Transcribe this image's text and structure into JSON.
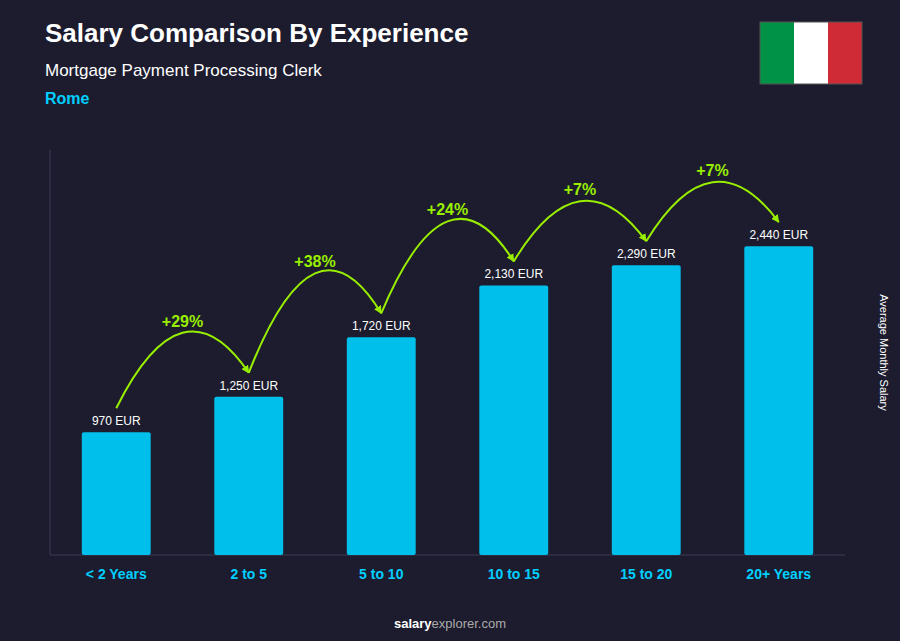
{
  "chart_data": {
    "type": "bar",
    "title": "Salary Comparison By Experience",
    "subtitle": "Mortgage Payment Processing Clerk",
    "city": "Rome",
    "ylabel": "Average Monthly Salary",
    "footer": [
      "salary",
      "explorer.com"
    ],
    "categories": [
      "< 2 Years",
      "2 to 5",
      "5 to 10",
      "10 to 15",
      "15 to 20",
      "20+ Years"
    ],
    "values": [
      970,
      1250,
      1720,
      2130,
      2290,
      2440
    ],
    "value_labels": [
      "970 EUR",
      "1,250 EUR",
      "1,720 EUR",
      "2,130 EUR",
      "2,290 EUR",
      "2,440 EUR"
    ],
    "data_labels": true,
    "annotations": [
      {
        "text": "+29%",
        "color": "#99ee00"
      },
      {
        "text": "+38%",
        "color": "#99ee00"
      },
      {
        "text": "+24%",
        "color": "#99ee00"
      },
      {
        "text": "+7%",
        "color": "#99ee00"
      },
      {
        "text": "+7%",
        "color": "#99ee00"
      }
    ],
    "color": "#00bfea",
    "ylim": [
      0,
      3200
    ],
    "tick_labels": "x"
  }
}
